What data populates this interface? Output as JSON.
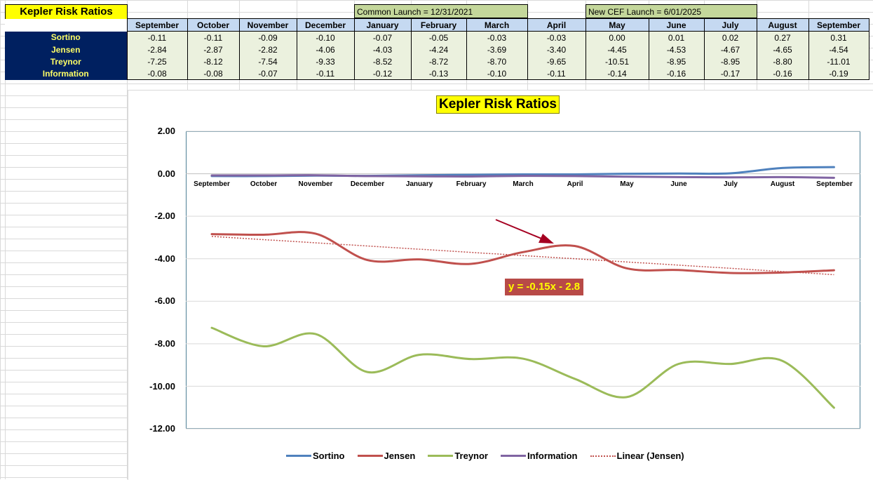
{
  "sheet": {
    "title": "Kepler Risk Ratios",
    "launch_notes": [
      {
        "label": "Common Launch = 12/31/2021"
      },
      {
        "label": "New CEF Launch = 6/01/2025"
      }
    ],
    "months": [
      "September",
      "October",
      "November",
      "December",
      "January",
      "February",
      "March",
      "April",
      "May",
      "June",
      "July",
      "August",
      "September"
    ],
    "rows": [
      {
        "label": "Sortino",
        "values": [
          "-0.11",
          "-0.11",
          "-0.09",
          "-0.10",
          "-0.07",
          "-0.05",
          "-0.03",
          "-0.03",
          "0.00",
          "0.01",
          "0.02",
          "0.27",
          "0.31"
        ]
      },
      {
        "label": "Jensen",
        "values": [
          "-2.84",
          "-2.87",
          "-2.82",
          "-4.06",
          "-4.03",
          "-4.24",
          "-3.69",
          "-3.40",
          "-4.45",
          "-4.53",
          "-4.67",
          "-4.65",
          "-4.54"
        ]
      },
      {
        "label": "Treynor",
        "values": [
          "-7.25",
          "-8.12",
          "-7.54",
          "-9.33",
          "-8.52",
          "-8.72",
          "-8.70",
          "-9.65",
          "-10.51",
          "-8.95",
          "-8.95",
          "-8.80",
          "-11.01"
        ]
      },
      {
        "label": "Information",
        "values": [
          "-0.08",
          "-0.08",
          "-0.07",
          "-0.11",
          "-0.12",
          "-0.13",
          "-0.10",
          "-0.11",
          "-0.14",
          "-0.16",
          "-0.17",
          "-0.16",
          "-0.19"
        ]
      }
    ]
  },
  "chart": {
    "trendline_equation": "y = -0.15x - 2.8",
    "y_ticks": [
      "2.00",
      "0.00",
      "-2.00",
      "-4.00",
      "-6.00",
      "-8.00",
      "-10.00",
      "-12.00"
    ]
  },
  "chart_data": {
    "type": "line",
    "title": "Kepler Risk Ratios",
    "xlabel": "",
    "ylabel": "",
    "ylim": [
      -12,
      2
    ],
    "grid": true,
    "legend_position": "bottom",
    "categories": [
      "September",
      "October",
      "November",
      "December",
      "January",
      "February",
      "March",
      "April",
      "May",
      "June",
      "July",
      "August",
      "September"
    ],
    "series": [
      {
        "name": "Sortino",
        "color": "#4f81bd",
        "values": [
          -0.11,
          -0.11,
          -0.09,
          -0.1,
          -0.07,
          -0.05,
          -0.03,
          -0.03,
          0.0,
          0.01,
          0.02,
          0.27,
          0.31
        ]
      },
      {
        "name": "Jensen",
        "color": "#c0504d",
        "values": [
          -2.84,
          -2.87,
          -2.82,
          -4.06,
          -4.03,
          -4.24,
          -3.69,
          -3.4,
          -4.45,
          -4.53,
          -4.67,
          -4.65,
          -4.54
        ]
      },
      {
        "name": "Treynor",
        "color": "#9bbb59",
        "values": [
          -7.25,
          -8.12,
          -7.54,
          -9.33,
          -8.52,
          -8.72,
          -8.7,
          -9.65,
          -10.51,
          -8.95,
          -8.95,
          -8.8,
          -11.01
        ]
      },
      {
        "name": "Information",
        "color": "#8064a2",
        "values": [
          -0.08,
          -0.08,
          -0.07,
          -0.11,
          -0.12,
          -0.13,
          -0.1,
          -0.11,
          -0.14,
          -0.16,
          -0.17,
          -0.16,
          -0.19
        ]
      }
    ],
    "trendline": {
      "name": "Linear (Jensen)",
      "of": "Jensen",
      "equation": "y = -0.15x - 2.8",
      "slope": -0.15,
      "intercept": -2.8,
      "style": "dotted",
      "color": "#c0504d"
    },
    "annotations": [
      {
        "type": "arrow",
        "points_to": "Jensen April (-3.40)",
        "color": "#c00000"
      }
    ]
  },
  "legend": {
    "items": [
      {
        "label": "Sortino",
        "color": "#4f81bd"
      },
      {
        "label": "Jensen",
        "color": "#c0504d"
      },
      {
        "label": "Treynor",
        "color": "#9bbb59"
      },
      {
        "label": "Information",
        "color": "#8064a2"
      },
      {
        "label": "Linear (Jensen)",
        "color": "#c0504d"
      }
    ]
  }
}
